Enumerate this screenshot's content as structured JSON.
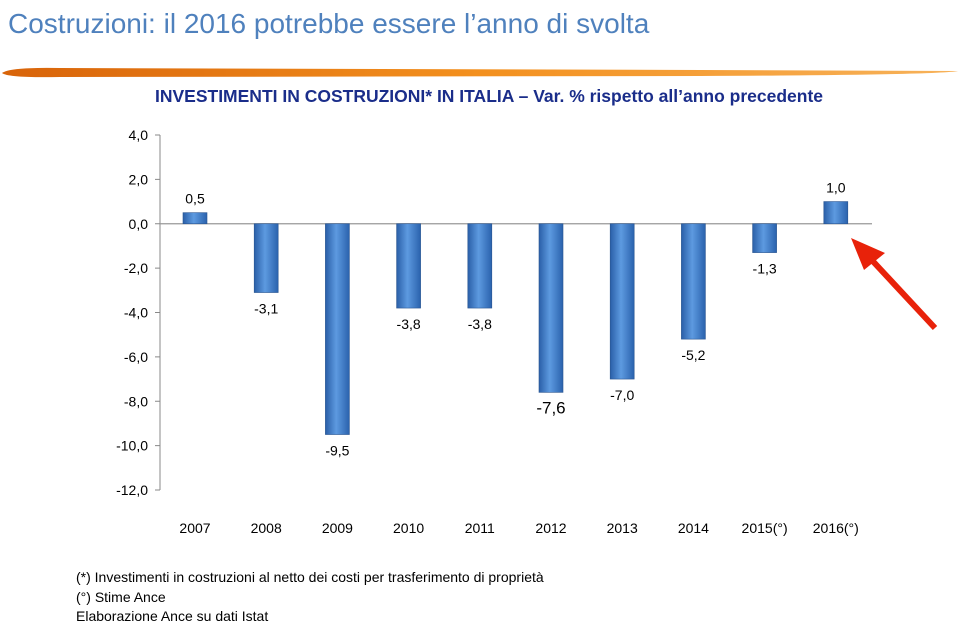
{
  "slide": {
    "title": "Costruzioni: il 2016 potrebbe essere l’anno di svolta",
    "accent_color": "#4f81bd",
    "brush_color": "#f08a1c",
    "arrow_color": "#e8220a",
    "footnotes": [
      "(*) Investimenti in costruzioni al netto dei costi per trasferimento di proprietà",
      "(°) Stime Ance",
      "Elaborazione Ance su dati Istat"
    ]
  },
  "chart_data": {
    "type": "bar",
    "title": "INVESTIMENTI IN COSTRUZIONI* IN ITALIA – Var. % rispetto all’anno precedente",
    "categories": [
      "2007",
      "2008",
      "2009",
      "2010",
      "2011",
      "2012",
      "2013",
      "2014",
      "2015(°)",
      "2016(°)"
    ],
    "values": [
      0.5,
      -3.1,
      -9.5,
      -3.8,
      -3.8,
      -7.6,
      -7.0,
      -5.2,
      -1.3,
      1.0
    ],
    "data_labels": [
      "0,5",
      "-3,1",
      "-9,5",
      "-3,8",
      "-3,8",
      "-7,6",
      "-7,0",
      "-5,2",
      "-1,3",
      "1,0"
    ],
    "ylim": [
      -12,
      4
    ],
    "yticks": [
      "4,0",
      "2,0",
      "0,0",
      "-2,0",
      "-4,0",
      "-6,0",
      "-8,0",
      "-10,0",
      "-12,0"
    ],
    "ytick_values": [
      4,
      2,
      0,
      -2,
      -4,
      -6,
      -8,
      -10,
      -12
    ],
    "xlabel": "",
    "ylabel": "",
    "grid": false,
    "bar_color": "#3b78c4",
    "annotation": "red arrow pointing to 2016(°) bar"
  }
}
